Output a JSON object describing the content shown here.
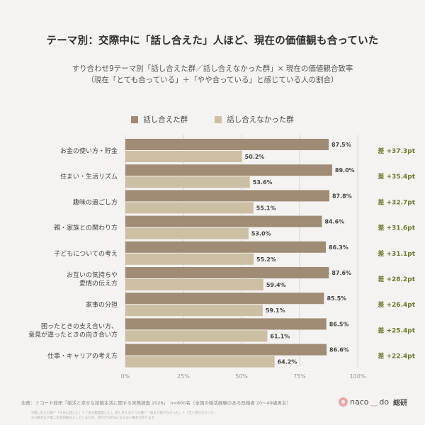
{
  "header": {
    "title": "テーマ別：交際中に「話し合えた」人ほど、現在の価値観も合っていた",
    "subtitle_line1": "すり合わせ9テーマ別「話し合えた群／話し合えなかった群」× 現在の価値観合致率",
    "subtitle_line2": "（現在「とても合っている」＋「やや合っている」と感じている人の割合）"
  },
  "colors": {
    "group_a": "#a08b75",
    "group_b": "#cdbfa3",
    "diff_text": "#6e7a2e",
    "grid": "#d9d6d1"
  },
  "chart_data": {
    "type": "bar",
    "orientation": "horizontal",
    "categories": [
      [
        "お金の使い方・貯金"
      ],
      [
        "住まい・生活リズム"
      ],
      [
        "趣味の過ごし方"
      ],
      [
        "親・家族との関わり方"
      ],
      [
        "子どもについての考え"
      ],
      [
        "お互いの気持ちや",
        "愛情の伝え方"
      ],
      [
        "家事の分担"
      ],
      [
        "困ったときの支え合い方、",
        "意見が違ったときの向き合い方"
      ],
      [
        "仕事・キャリアの考え方"
      ]
    ],
    "series": [
      {
        "name": "話し合えた群",
        "values": [
          87.5,
          89.0,
          87.8,
          84.6,
          86.3,
          87.6,
          85.5,
          86.5,
          86.6
        ],
        "labels": [
          "87.5%",
          "89.0%",
          "87.8%",
          "84.6%",
          "86.3%",
          "87.6%",
          "85.5%",
          "86.5%",
          "86.6%"
        ]
      },
      {
        "name": "話し合えなかった群",
        "values": [
          50.2,
          53.6,
          55.1,
          53.0,
          55.2,
          59.4,
          59.1,
          61.1,
          64.2
        ],
        "labels": [
          "50.2%",
          "53.6%",
          "55.1%",
          "53.0%",
          "55.2%",
          "59.4%",
          "59.1%",
          "61.1%",
          "64.2%"
        ]
      }
    ],
    "differences": [
      "差 +37.3pt",
      "差 +35.4pt",
      "差 +32.7pt",
      "差 +31.6pt",
      "差 +31.1pt",
      "差 +28.2pt",
      "差 +26.4pt",
      "差 +25.4pt",
      "差 +22.4pt"
    ],
    "xlim": [
      0,
      100
    ],
    "xticks": [
      0,
      25,
      50,
      75,
      100
    ],
    "xtick_labels": [
      "0%",
      "25%",
      "50%",
      "75%",
      "100%"
    ],
    "grid": true,
    "legend_position": "top-center"
  },
  "footer": {
    "source": "出典：ナコード総研「婚活と幸せな結婚生活に関する実態調査 2026」　n=800名（全国の婚活経験のある既婚者 20〜49歳男女）",
    "note1": "※話し合えた群＝「十分に話した」＋「ある程度話した」、話し合えなかった群＝「あまり話せなかった」＋「全く話せなかった」",
    "note2": "※小数点以下第二位を四捨五入しているため、合計が100%にならない場合があります",
    "logo_left": "naco",
    "logo_right": "do",
    "logo_suffix": "総研"
  }
}
